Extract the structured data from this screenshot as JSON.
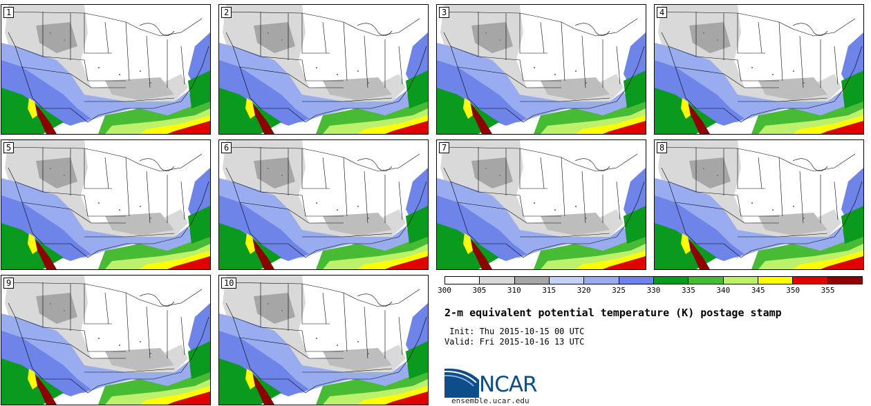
{
  "panels": [
    {
      "label": "1"
    },
    {
      "label": "2"
    },
    {
      "label": "3"
    },
    {
      "label": "4"
    },
    {
      "label": "5"
    },
    {
      "label": "6"
    },
    {
      "label": "7"
    },
    {
      "label": "8"
    },
    {
      "label": "9"
    },
    {
      "label": "10"
    }
  ],
  "colorbar": {
    "ticks": [
      "300",
      "305",
      "310",
      "315",
      "320",
      "325",
      "330",
      "335",
      "340",
      "345",
      "350",
      "355"
    ],
    "colors": [
      "#ffffff",
      "#d9d9d9",
      "#a6a6a6",
      "#c2d2f7",
      "#99acf0",
      "#6e84e8",
      "#0a9a1e",
      "#48bb34",
      "#bdf06b",
      "#ffff00",
      "#e00000",
      "#8c0000"
    ]
  },
  "title": "2-m equivalent potential temperature (K) postage stamp",
  "init": " Init: Thu 2015-10-15 00 UTC",
  "valid": "Valid: Fri 2015-10-16 13 UTC",
  "logo": {
    "text": "NCAR",
    "url": "ensemble.ucar.edu"
  }
}
